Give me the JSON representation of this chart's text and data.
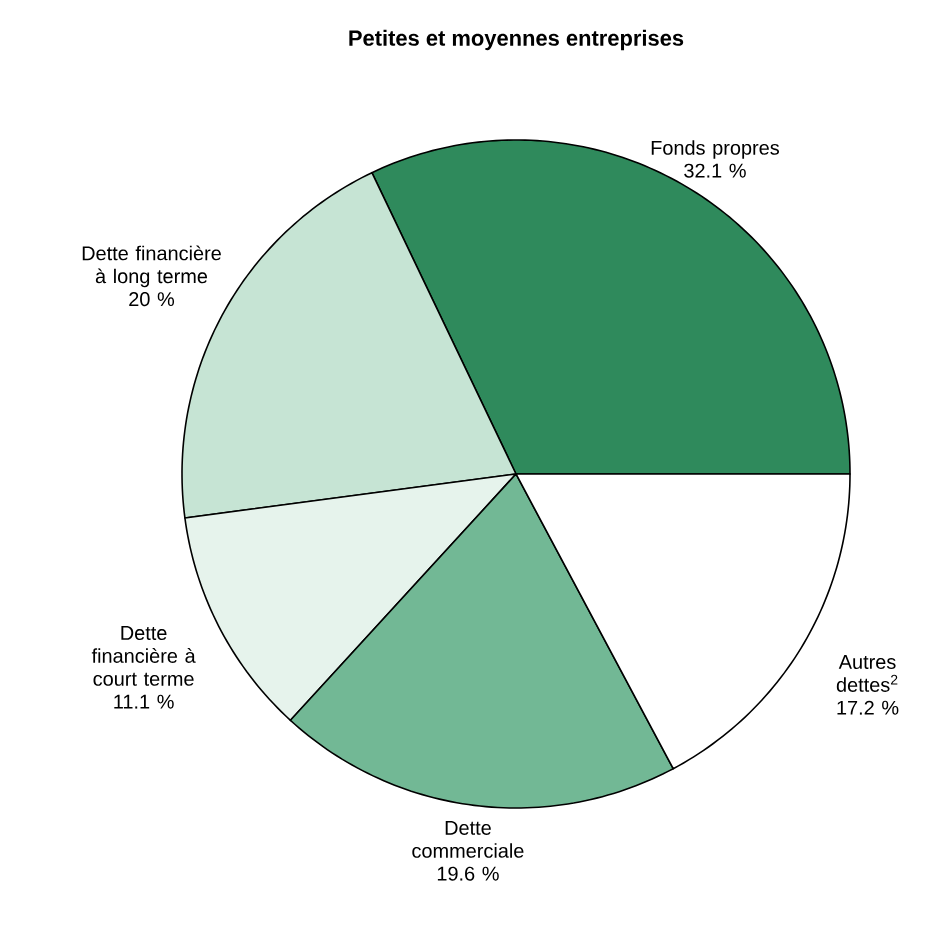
{
  "chart_data": {
    "type": "pie",
    "title": "Petites et moyennes entreprises",
    "categories": [
      "Fonds propres",
      "Dette financière à long terme",
      "Dette financière à court terme",
      "Dette commerciale",
      "Autres dettes$^{2}$"
    ],
    "values": [
      32.1,
      20,
      11.1,
      19.6,
      17.2
    ],
    "value_labels": [
      "32.1 %",
      "20 %",
      "11.1 %",
      "19.6 %",
      "17.2 %"
    ],
    "colors": [
      "#2f8a5c",
      "#c6e4d4",
      "#e6f3ec",
      "#72b895",
      "#ffffff"
    ]
  }
}
